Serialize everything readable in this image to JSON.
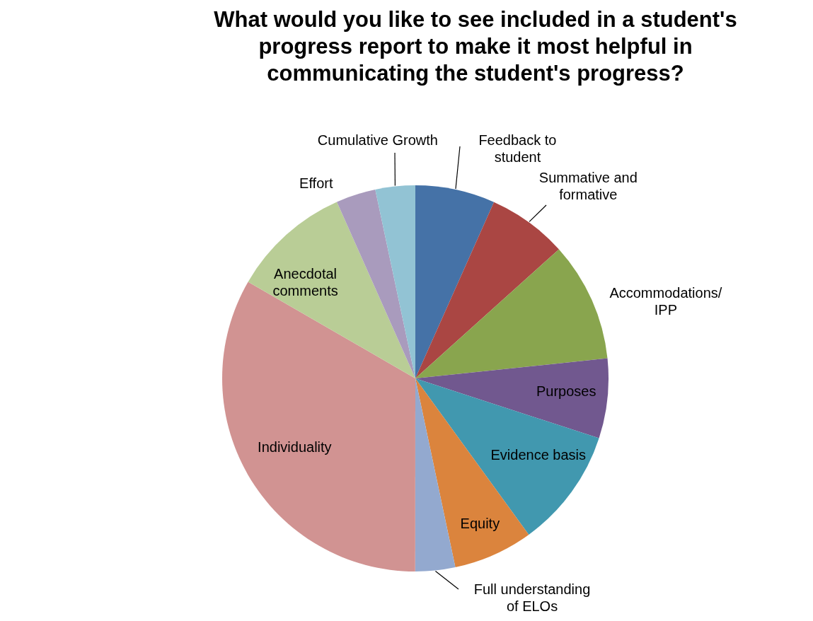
{
  "chart_data": {
    "type": "pie",
    "title": "What would you like to see included in a student's progress report to make it most helpful in communicating the student's progress?",
    "categories": [
      "Feedback to student",
      "Summative and formative",
      "Accommodations/ IPP",
      "Purposes",
      "Evidence basis",
      "Equity",
      "Full understanding of ELOs",
      "Individuality",
      "Anecdotal comments",
      "Effort",
      "Cumulative Growth"
    ],
    "values": [
      6.67,
      6.67,
      10,
      6.67,
      10,
      6.67,
      3.33,
      33.33,
      10,
      3.33,
      3.33
    ],
    "colors": [
      "#4572a7",
      "#aa4643",
      "#89a54e",
      "#71588f",
      "#4198af",
      "#db843d",
      "#93a9cf",
      "#d19392",
      "#b9cd96",
      "#a99bbd",
      "#92c3d4"
    ]
  }
}
